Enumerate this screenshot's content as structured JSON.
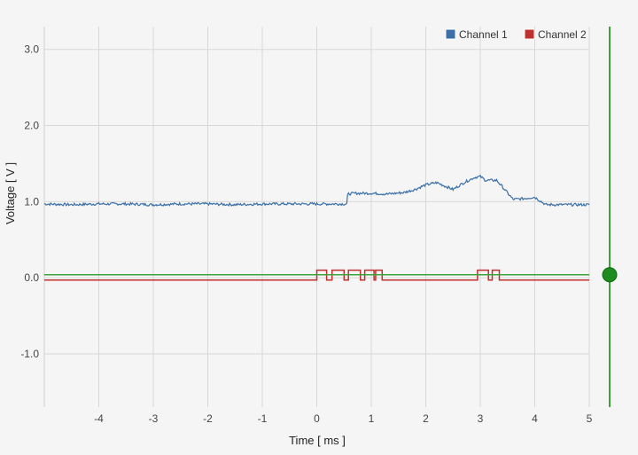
{
  "chart_data": {
    "type": "line",
    "xlabel": "Time [ ms ]",
    "ylabel": "Voltage [ V ]",
    "xlim": [
      -5.0,
      5.0
    ],
    "ylim": [
      -1.7,
      3.3
    ],
    "grid": true,
    "legend_placement": "top-right",
    "x_ticks": [
      "-4",
      "-3",
      "-2",
      "-1",
      "0",
      "1",
      "2",
      "3",
      "4",
      "5"
    ],
    "y_ticks": [
      "3.0",
      "2.0",
      "1.0",
      "0.0",
      "-1.0"
    ],
    "trigger_level": 0.04,
    "series": [
      {
        "name": "Channel 1",
        "color": "#3a6fa8",
        "x": [
          -5.0,
          -4.5,
          -4.0,
          -3.5,
          -3.0,
          -2.5,
          -2.0,
          -1.5,
          -1.0,
          -0.5,
          0.0,
          0.55,
          0.57,
          0.7,
          1.0,
          1.3,
          1.6,
          1.8,
          2.0,
          2.2,
          2.3,
          2.5,
          2.7,
          2.9,
          3.0,
          3.1,
          3.3,
          3.4,
          3.6,
          3.8,
          4.0,
          4.2,
          4.5,
          5.0
        ],
        "y": [
          0.97,
          0.96,
          0.97,
          0.97,
          0.96,
          0.97,
          0.97,
          0.96,
          0.97,
          0.97,
          0.97,
          0.97,
          1.1,
          1.11,
          1.11,
          1.1,
          1.12,
          1.16,
          1.22,
          1.25,
          1.22,
          1.16,
          1.25,
          1.32,
          1.33,
          1.28,
          1.28,
          1.2,
          1.03,
          1.04,
          1.06,
          0.96,
          0.96,
          0.96
        ]
      },
      {
        "name": "Channel 2",
        "color": "#c0302e",
        "pulses": [
          [
            0.0,
            0.18
          ],
          [
            0.28,
            0.5
          ],
          [
            0.58,
            0.8
          ],
          [
            0.88,
            1.05
          ],
          [
            1.08,
            1.2
          ],
          [
            2.95,
            3.15
          ],
          [
            3.22,
            3.35
          ]
        ],
        "low": -0.03,
        "high": 0.1
      }
    ]
  }
}
